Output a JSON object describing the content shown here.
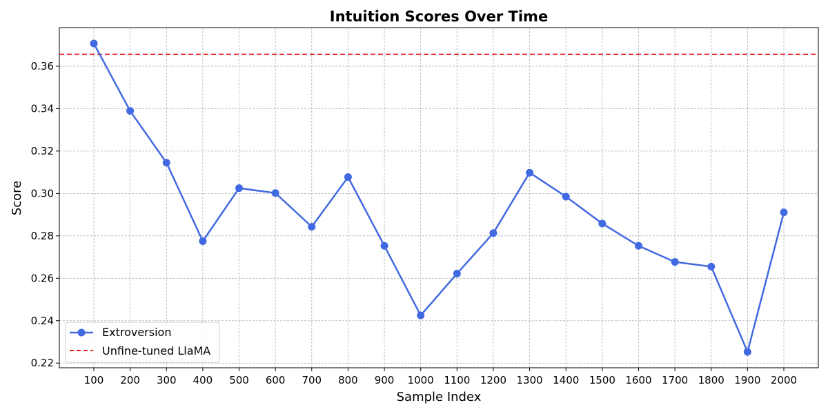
{
  "chart_data": {
    "type": "line",
    "title": "Intuition Scores Over Time",
    "xlabel": "Sample Index",
    "ylabel": "Score",
    "x": [
      100,
      200,
      300,
      400,
      500,
      600,
      700,
      800,
      900,
      1000,
      1100,
      1200,
      1300,
      1400,
      1500,
      1600,
      1700,
      1800,
      1900,
      2000
    ],
    "series": [
      {
        "name": "Extroversion",
        "color": "#4169e1",
        "marker": "circle",
        "values": [
          0.3707,
          0.3389,
          0.3145,
          0.2775,
          0.3025,
          0.3002,
          0.2843,
          0.3077,
          0.2753,
          0.2425,
          0.2622,
          0.2813,
          0.3098,
          0.2985,
          0.2858,
          0.2753,
          0.2677,
          0.2655,
          0.2253,
          0.2911
        ]
      }
    ],
    "reference_line": {
      "name": "Unfine-tuned LlaMA",
      "value": 0.3656,
      "color": "#e41a1c",
      "style": "dashed"
    },
    "xticks": [
      100,
      200,
      300,
      400,
      500,
      600,
      700,
      800,
      900,
      1000,
      1100,
      1200,
      1300,
      1400,
      1500,
      1600,
      1700,
      1800,
      1900,
      2000
    ],
    "yticks": [
      0.22,
      0.24,
      0.26,
      0.28,
      0.3,
      0.32,
      0.34,
      0.36
    ],
    "xlim": [
      5,
      2095
    ],
    "ylim": [
      0.2178,
      0.3782
    ],
    "grid": true,
    "legend_position": "lower-left"
  }
}
